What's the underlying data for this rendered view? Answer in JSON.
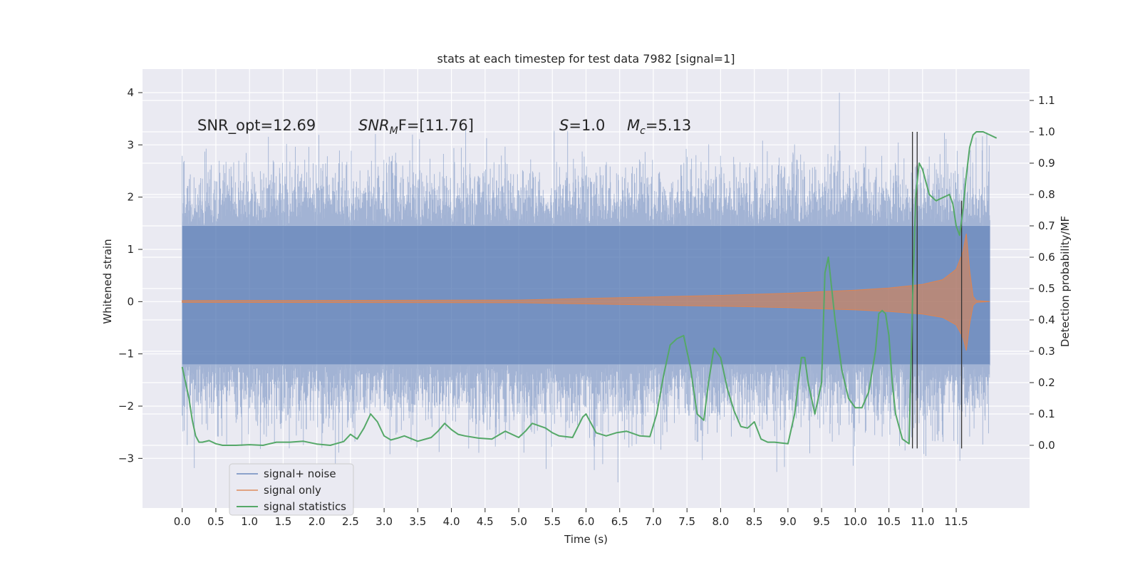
{
  "chart_data": {
    "type": "line",
    "title": "stats at each timestep for test data 7982 [signal=1]",
    "xlabel": "Time (s)",
    "ylabel": "Whitened strain",
    "ylabel_right": "Detection probability/MF",
    "xlim": [
      -0.59,
      12.59
    ],
    "ylim": [
      -3.95,
      4.45
    ],
    "ylim_right": [
      -0.2,
      1.2
    ],
    "x_ticks": [
      "0.0",
      "0.5",
      "1.0",
      "1.5",
      "2.0",
      "2.5",
      "3.0",
      "3.5",
      "4.0",
      "4.5",
      "5.0",
      "5.5",
      "6.0",
      "6.5",
      "7.0",
      "7.5",
      "8.0",
      "8.5",
      "9.0",
      "9.5",
      "10.0",
      "10.5",
      "11.0",
      "11.5"
    ],
    "y_ticks": [
      "4",
      "3",
      "2",
      "1",
      "0",
      "−1",
      "−2",
      "−3"
    ],
    "y_ticks_right": [
      "1.1",
      "1.0",
      "0.9",
      "0.8",
      "0.7",
      "0.6",
      "0.5",
      "0.4",
      "0.3",
      "0.2",
      "0.1",
      "0.0"
    ],
    "annotations": {
      "snr_opt": "SNR_opt=12.69",
      "snr_mf_base": "SNR",
      "snr_mf_sub": "M",
      "snr_mf_tail": "F=[11.76]",
      "s_sym": "S",
      "s_val": "=1.0",
      "mc_sym": "M",
      "mc_sub": "c",
      "mc_val": "=5.13"
    },
    "legend": {
      "placement": "lower-left",
      "entries": [
        "signal+ noise",
        "signal only",
        "signal statistics"
      ]
    },
    "colors": {
      "noise": "#4c72b0",
      "signal": "#dd8452",
      "stats": "#55a868",
      "marker": "#333333",
      "background": "#eaeaf2",
      "grid": "#ffffff"
    },
    "series": [
      {
        "name": "signal+ noise",
        "axis": "left",
        "duration": [
          0.0,
          12.0
        ],
        "band_upper": 1.45,
        "band_lower": -1.2,
        "max_peak": 4.1,
        "min_peak": -3.6
      },
      {
        "name": "signal only",
        "axis": "left",
        "x": [
          0,
          5,
          6,
          7,
          8,
          9,
          9.5,
          10,
          10.5,
          11,
          11.3,
          11.5,
          11.6,
          11.65,
          11.7,
          11.75,
          11.8,
          12.0
        ],
        "amplitude": [
          0.02,
          0.03,
          0.06,
          0.09,
          0.12,
          0.16,
          0.19,
          0.22,
          0.26,
          0.33,
          0.42,
          0.62,
          0.95,
          1.3,
          0.6,
          0.1,
          0.02,
          0.0
        ]
      },
      {
        "name": "signal statistics",
        "axis": "right",
        "x": [
          0.0,
          0.05,
          0.1,
          0.15,
          0.2,
          0.25,
          0.3,
          0.4,
          0.5,
          0.6,
          0.8,
          1.0,
          1.2,
          1.4,
          1.6,
          1.8,
          2.0,
          2.2,
          2.4,
          2.5,
          2.6,
          2.7,
          2.8,
          2.9,
          3.0,
          3.1,
          3.2,
          3.3,
          3.5,
          3.7,
          3.8,
          3.9,
          4.0,
          4.1,
          4.2,
          4.4,
          4.6,
          4.8,
          5.0,
          5.1,
          5.2,
          5.4,
          5.5,
          5.6,
          5.8,
          5.95,
          6.0,
          6.05,
          6.15,
          6.3,
          6.45,
          6.6,
          6.8,
          6.95,
          7.05,
          7.15,
          7.25,
          7.35,
          7.45,
          7.55,
          7.65,
          7.75,
          7.82,
          7.9,
          8.0,
          8.1,
          8.2,
          8.3,
          8.4,
          8.5,
          8.6,
          8.7,
          8.8,
          9.0,
          9.1,
          9.2,
          9.25,
          9.3,
          9.4,
          9.5,
          9.55,
          9.6,
          9.65,
          9.7,
          9.8,
          9.9,
          10.0,
          10.1,
          10.2,
          10.3,
          10.35,
          10.4,
          10.45,
          10.5,
          10.55,
          10.6,
          10.7,
          10.8,
          10.85,
          10.9,
          10.95,
          11.0,
          11.05,
          11.1,
          11.2,
          11.3,
          11.4,
          11.45,
          11.5,
          11.55,
          11.6,
          11.65,
          11.7,
          11.75,
          11.8,
          11.9,
          12.0,
          12.1
        ],
        "values": [
          0.25,
          0.2,
          0.15,
          0.08,
          0.03,
          0.01,
          0.01,
          0.015,
          0.005,
          0.0,
          0.0,
          0.002,
          0.0,
          0.01,
          0.01,
          0.013,
          0.004,
          0.0,
          0.012,
          0.035,
          0.02,
          0.055,
          0.1,
          0.075,
          0.03,
          0.017,
          0.023,
          0.03,
          0.013,
          0.025,
          0.045,
          0.07,
          0.05,
          0.035,
          0.03,
          0.023,
          0.02,
          0.045,
          0.025,
          0.045,
          0.07,
          0.055,
          0.04,
          0.03,
          0.025,
          0.09,
          0.1,
          0.08,
          0.04,
          0.03,
          0.04,
          0.045,
          0.03,
          0.028,
          0.1,
          0.22,
          0.32,
          0.34,
          0.35,
          0.25,
          0.1,
          0.08,
          0.2,
          0.31,
          0.28,
          0.18,
          0.11,
          0.06,
          0.055,
          0.075,
          0.02,
          0.01,
          0.01,
          0.005,
          0.1,
          0.28,
          0.28,
          0.2,
          0.1,
          0.2,
          0.55,
          0.6,
          0.5,
          0.4,
          0.24,
          0.15,
          0.12,
          0.12,
          0.17,
          0.3,
          0.42,
          0.43,
          0.42,
          0.35,
          0.2,
          0.1,
          0.02,
          0.005,
          0.45,
          0.8,
          0.9,
          0.88,
          0.84,
          0.8,
          0.78,
          0.79,
          0.8,
          0.77,
          0.7,
          0.67,
          0.75,
          0.86,
          0.95,
          0.99,
          1.0,
          1.0,
          0.99,
          0.98
        ]
      }
    ],
    "vertical_markers": [
      {
        "x": 10.85,
        "y_range": [
          -0.01,
          1.0
        ]
      },
      {
        "x": 10.92,
        "y_range": [
          -0.01,
          1.0
        ]
      },
      {
        "x": 11.58,
        "y_range": [
          -0.01,
          0.78
        ]
      }
    ]
  }
}
